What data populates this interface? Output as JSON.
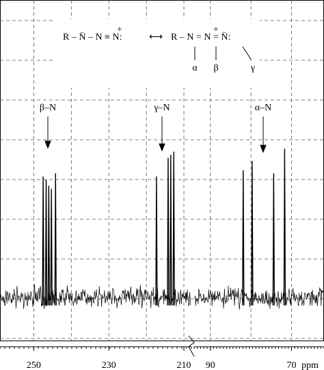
{
  "chart_data": {
    "type": "spectrum",
    "x_label": "ppm",
    "segments": [
      {
        "xlim": [
          259,
          208
        ],
        "xticks": [
          250,
          230,
          210
        ],
        "xgrid": [
          250,
          240,
          230,
          220,
          210
        ]
      },
      {
        "xlim": [
          94,
          62
        ],
        "xticks": [
          90,
          70
        ],
        "xgrid": [
          90,
          80,
          70
        ]
      }
    ],
    "x": [
      247.5,
      246.7,
      246.0,
      245.3,
      244.2,
      217.3,
      214.2,
      213.5,
      212.7,
      81.9,
      79.7,
      74.4,
      71.7
    ],
    "values": [
      39,
      38,
      36,
      35,
      40,
      39,
      45,
      46,
      47,
      41,
      44,
      40,
      48
    ],
    "ylim": [
      -14,
      96
    ],
    "color": "#000000",
    "grid": true,
    "annotations": [
      "β–N",
      "γ–N",
      "α–N"
    ],
    "structure": {
      "left": "R – N̈ – N ≡ N:",
      "left_charge": "+",
      "right": "R – N = N = N̈:",
      "right_charge": "+",
      "labels": [
        "α",
        "β",
        "γ"
      ]
    }
  }
}
